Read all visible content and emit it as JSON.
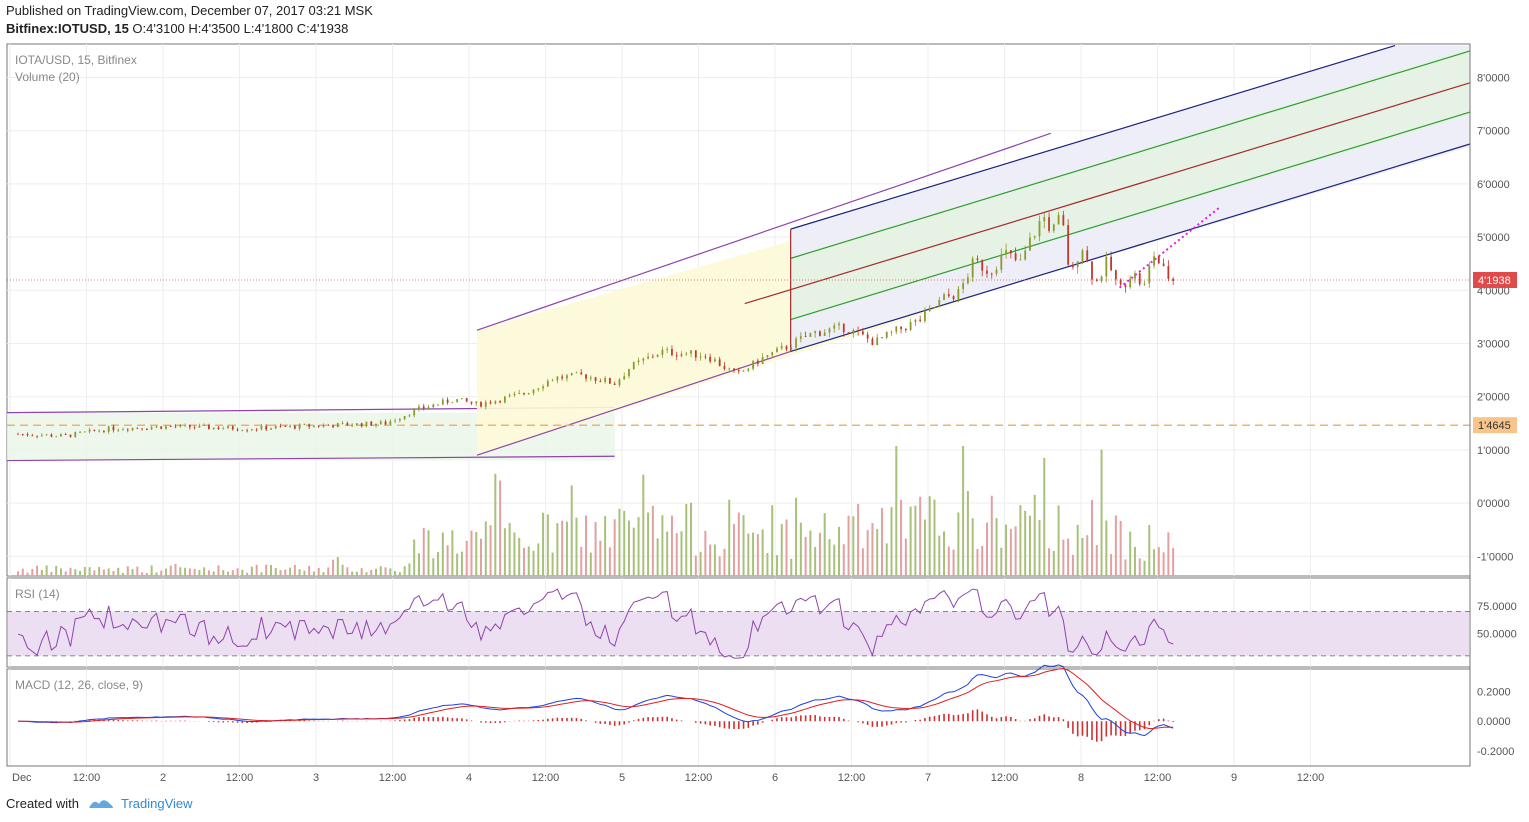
{
  "header": {
    "published": "Published on TradingView.com, December 07, 2017 03:21 MSK",
    "symbol_line": "Bitfinex:IOTUSD, 15",
    "ohlc": "O:4'3100 H:4'3500 L:4'1800 C:4'1938"
  },
  "footer": {
    "created_with": "Created with",
    "brand": "TradingView"
  },
  "colors": {
    "candle_up": "#8a9a2a",
    "candle_down": "#c0392b",
    "volume_up": "#a8c07a",
    "volume_down": "#e2a0a0",
    "channel_purple": "#8e44ad",
    "pitchfork_navy": "#1a237e",
    "pitchfork_green": "#2e9e2e",
    "pitchfork_red": "#a52a2a",
    "price_line": "#e05050",
    "support_orange": "#f5b16a",
    "rsi_line": "#8e44ad",
    "macd_line": "#1e40e0",
    "signal_line": "#e02020",
    "hist": "#d03030"
  },
  "chart_data": [
    {
      "type": "candlestick",
      "title": "IOTA/USD, 15, Bitfinex",
      "subtitle": "Volume (20)",
      "x_ticks": [
        "Dec",
        "12:00",
        "2",
        "12:00",
        "3",
        "12:00",
        "4",
        "12:00",
        "5",
        "12:00",
        "6",
        "12:00",
        "7",
        "12:00",
        "8",
        "12:00",
        "9",
        "12:00"
      ],
      "y_ticks": [
        "8'0000",
        "7'0000",
        "6'0000",
        "5'0000",
        "4'0000",
        "3'0000",
        "2'0000",
        "1'0000",
        "0'0000",
        "-1'0000"
      ],
      "ylim": [
        -1.35,
        8.5
      ],
      "last_price_label": "4'1938",
      "last_price": 4.1938,
      "support_label": "1'4645",
      "support_price": 1.4645,
      "price_path": [
        [
          0,
          1.3
        ],
        [
          0.3,
          1.26
        ],
        [
          0.6,
          1.4
        ],
        [
          1.0,
          1.44
        ],
        [
          1.5,
          1.4
        ],
        [
          2.0,
          1.46
        ],
        [
          2.4,
          1.5
        ],
        [
          2.6,
          1.75
        ],
        [
          2.85,
          1.95
        ],
        [
          3.0,
          1.85
        ],
        [
          3.3,
          2.05
        ],
        [
          3.5,
          2.35
        ],
        [
          3.7,
          2.4
        ],
        [
          3.9,
          2.25
        ],
        [
          4.0,
          2.55
        ],
        [
          4.2,
          2.85
        ],
        [
          4.5,
          2.78
        ],
        [
          4.7,
          2.4
        ],
        [
          4.85,
          2.7
        ],
        [
          5.0,
          2.9
        ],
        [
          5.2,
          3.2
        ],
        [
          5.4,
          3.3
        ],
        [
          5.6,
          3.02
        ],
        [
          5.75,
          3.25
        ],
        [
          5.9,
          3.45
        ],
        [
          6.05,
          3.85
        ],
        [
          6.15,
          3.95
        ],
        [
          6.25,
          4.55
        ],
        [
          6.35,
          4.35
        ],
        [
          6.45,
          4.7
        ],
        [
          6.55,
          4.5
        ],
        [
          6.62,
          4.95
        ],
        [
          6.7,
          5.4
        ],
        [
          6.76,
          5.1
        ],
        [
          6.82,
          5.4
        ],
        [
          6.88,
          4.2
        ],
        [
          6.95,
          4.9
        ],
        [
          7.0,
          4.4
        ],
        [
          7.05,
          4.15
        ],
        [
          7.12,
          4.55
        ],
        [
          7.2,
          4.0
        ],
        [
          7.28,
          4.35
        ],
        [
          7.36,
          4.05
        ],
        [
          7.42,
          4.7
        ],
        [
          7.48,
          4.4
        ],
        [
          7.52,
          4.25
        ],
        [
          7.55,
          4.1938
        ]
      ],
      "volume_ylim": [
        0,
        1
      ],
      "volume_profile": [
        [
          0,
          0.06
        ],
        [
          2.55,
          0.07
        ],
        [
          2.6,
          0.3
        ],
        [
          3.2,
          0.35
        ],
        [
          4.2,
          0.45
        ],
        [
          5.0,
          0.35
        ],
        [
          6.0,
          0.5
        ],
        [
          7.0,
          0.45
        ],
        [
          7.55,
          0.25
        ]
      ],
      "drawings": {
        "range_box_y": [
          0.8,
          1.7
        ],
        "range_box_x": [
          0,
          3.9
        ],
        "channel_upper": [
          [
            3.0,
            3.25
          ],
          [
            6.75,
            6.95
          ]
        ],
        "channel_lower": [
          [
            3.0,
            0.9
          ],
          [
            4.15,
            1.65
          ]
        ],
        "channel_upper_b": [
          [
            5.05,
            5.15
          ],
          [
            6.3,
            6.3
          ]
        ],
        "pitchfork_handle": [
          [
            5.05,
            5.15
          ],
          [
            5.05,
            2.85
          ]
        ],
        "dotted_arrow": [
          [
            7.2,
            4.05
          ],
          [
            7.85,
            5.55
          ]
        ]
      }
    },
    {
      "type": "line",
      "title": "RSI (14)",
      "y_ticks": [
        "75.0000",
        "50.0000"
      ],
      "ylim": [
        20,
        100
      ],
      "bands": [
        30,
        70
      ]
    },
    {
      "type": "line",
      "title": "MACD (12, 26, close, 9)",
      "y_ticks": [
        "0.2000",
        "0.0000",
        "-0.2000"
      ],
      "ylim": [
        -0.3,
        0.35
      ]
    }
  ]
}
